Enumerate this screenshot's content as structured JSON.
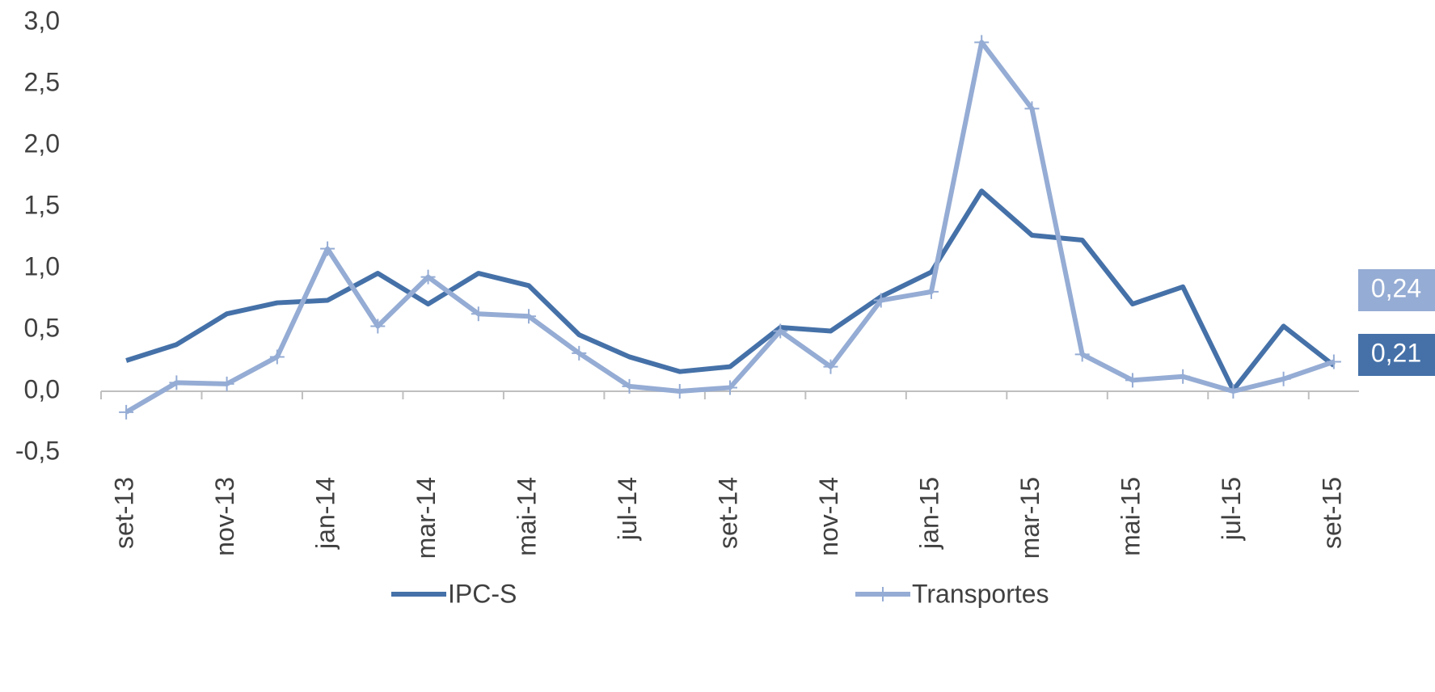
{
  "chart_data": {
    "type": "line",
    "categories": [
      "set-13",
      null,
      "nov-13",
      null,
      "jan-14",
      null,
      "mar-14",
      null,
      "mai-14",
      null,
      "jul-14",
      null,
      "set-14",
      null,
      "nov-14",
      null,
      "jan-15",
      null,
      "mar-15",
      null,
      "mai-15",
      null,
      "jul-15",
      null,
      "set-15"
    ],
    "series": [
      {
        "name": "IPC-S",
        "color": "#4571a8",
        "values": [
          0.25,
          0.38,
          0.63,
          0.72,
          0.74,
          0.96,
          0.71,
          0.96,
          0.86,
          0.46,
          0.28,
          0.16,
          0.2,
          0.52,
          0.49,
          0.77,
          0.97,
          1.63,
          1.27,
          1.23,
          0.71,
          0.85,
          0.01,
          0.53,
          0.21
        ],
        "value_labels": [
          null,
          null,
          null,
          null,
          null,
          null,
          null,
          null,
          null,
          null,
          null,
          null,
          null,
          null,
          null,
          null,
          null,
          null,
          null,
          null,
          null,
          null,
          null,
          null,
          "0,21"
        ]
      },
      {
        "name": "Transportes",
        "color": "#95acd4",
        "marker": "plus",
        "values": [
          -0.17,
          0.07,
          0.06,
          0.28,
          1.16,
          0.53,
          0.93,
          0.63,
          0.61,
          0.31,
          0.04,
          0.0,
          0.03,
          0.49,
          0.2,
          0.74,
          0.81,
          2.84,
          2.3,
          0.3,
          0.09,
          0.12,
          0.0,
          0.1,
          0.24
        ],
        "value_labels": [
          null,
          null,
          null,
          null,
          null,
          null,
          null,
          null,
          null,
          null,
          null,
          null,
          null,
          null,
          null,
          null,
          null,
          null,
          null,
          null,
          null,
          null,
          null,
          null,
          "0,24"
        ]
      }
    ],
    "ylim": [
      -0.5,
      3.0
    ],
    "yticks": [
      {
        "value": -0.5,
        "label": "-0,5"
      },
      {
        "value": 0.0,
        "label": "0,0"
      },
      {
        "value": 0.5,
        "label": "0,5"
      },
      {
        "value": 1.0,
        "label": "1,0"
      },
      {
        "value": 1.5,
        "label": "1,5"
      },
      {
        "value": 2.0,
        "label": "2,0"
      },
      {
        "value": 2.5,
        "label": "2,5"
      },
      {
        "value": 3.0,
        "label": "3,0"
      }
    ],
    "grid": false,
    "legend": "bottom"
  }
}
